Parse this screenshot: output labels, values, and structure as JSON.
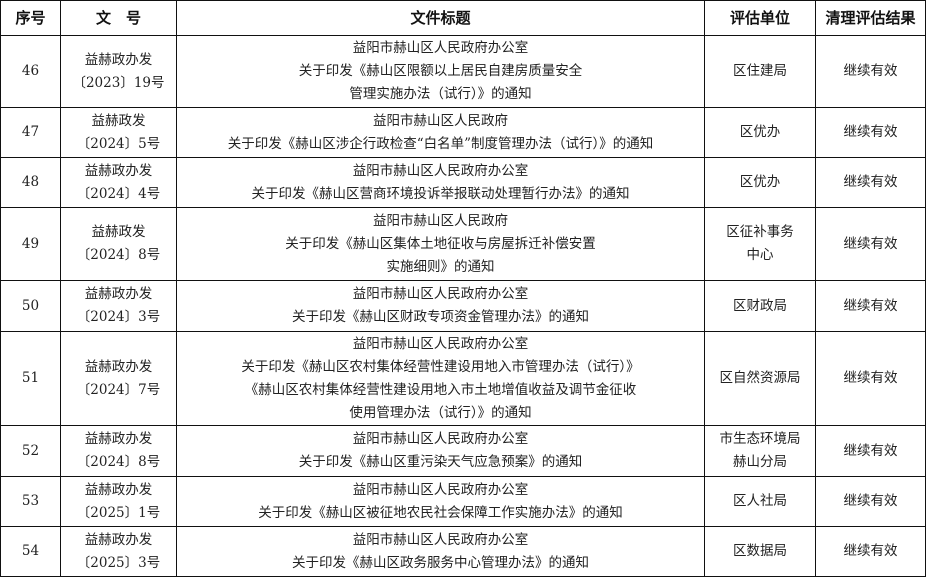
{
  "header": {
    "seq": "序号",
    "doc_no": "文　号",
    "title": "文件标题",
    "unit": "评估单位",
    "result": "清理评估结果"
  },
  "rows": [
    {
      "seq": "46",
      "doc_no": [
        "益赫政办发",
        "〔2023〕19号"
      ],
      "title": [
        "益阳市赫山区人民政府办公室",
        "关于印发《赫山区限额以上居民自建房质量安全",
        "管理实施办法（试行）》的通知"
      ],
      "unit": [
        "区住建局"
      ],
      "result": "继续有效"
    },
    {
      "seq": "47",
      "doc_no": [
        "益赫政发",
        "〔2024〕5号"
      ],
      "title": [
        "益阳市赫山区人民政府",
        "关于印发《赫山区涉企行政检查“白名单”制度管理办法（试行）》的通知"
      ],
      "unit": [
        "区优办"
      ],
      "result": "继续有效"
    },
    {
      "seq": "48",
      "doc_no": [
        "益赫政办发",
        "〔2024〕4号"
      ],
      "title": [
        "益阳市赫山区人民政府办公室",
        "关于印发《赫山区营商环境投诉举报联动处理暂行办法》的通知"
      ],
      "unit": [
        "区优办"
      ],
      "result": "继续有效"
    },
    {
      "seq": "49",
      "doc_no": [
        "益赫政发",
        "〔2024〕8号"
      ],
      "title": [
        "益阳市赫山区人民政府",
        "关于印发《赫山区集体土地征收与房屋拆迁补偿安置",
        "实施细则》的通知"
      ],
      "unit": [
        "区征补事务",
        "中心"
      ],
      "result": "继续有效"
    },
    {
      "seq": "50",
      "doc_no": [
        "益赫政办发",
        "〔2024〕3号"
      ],
      "title": [
        "益阳市赫山区人民政府办公室",
        "关于印发《赫山区财政专项资金管理办法》的通知"
      ],
      "unit": [
        "区财政局"
      ],
      "result": "继续有效"
    },
    {
      "seq": "51",
      "doc_no": [
        "益赫政办发",
        "〔2024〕7号"
      ],
      "title": [
        "益阳市赫山区人民政府办公室",
        "关于印发《赫山区农村集体经营性建设用地入市管理办法（试行）》",
        "《赫山区农村集体经营性建设用地入市土地增值收益及调节金征收",
        "使用管理办法（试行）》的通知"
      ],
      "unit": [
        "区自然资源局"
      ],
      "result": "继续有效"
    },
    {
      "seq": "52",
      "doc_no": [
        "益赫政办发",
        "〔2024〕8号"
      ],
      "title": [
        "益阳市赫山区人民政府办公室",
        "关于印发《赫山区重污染天气应急预案》的通知"
      ],
      "unit": [
        "市生态环境局",
        "赫山分局"
      ],
      "result": "继续有效"
    },
    {
      "seq": "53",
      "doc_no": [
        "益赫政办发",
        "〔2025〕1号"
      ],
      "title": [
        "益阳市赫山区人民政府办公室",
        "关于印发《赫山区被征地农民社会保障工作实施办法》的通知"
      ],
      "unit": [
        "区人社局"
      ],
      "result": "继续有效"
    },
    {
      "seq": "54",
      "doc_no": [
        "益赫政办发",
        "〔2025〕3号"
      ],
      "title": [
        "益阳市赫山区人民政府办公室",
        "关于印发《赫山区政务服务中心管理办法》的通知"
      ],
      "unit": [
        "区数据局"
      ],
      "result": "继续有效"
    }
  ]
}
